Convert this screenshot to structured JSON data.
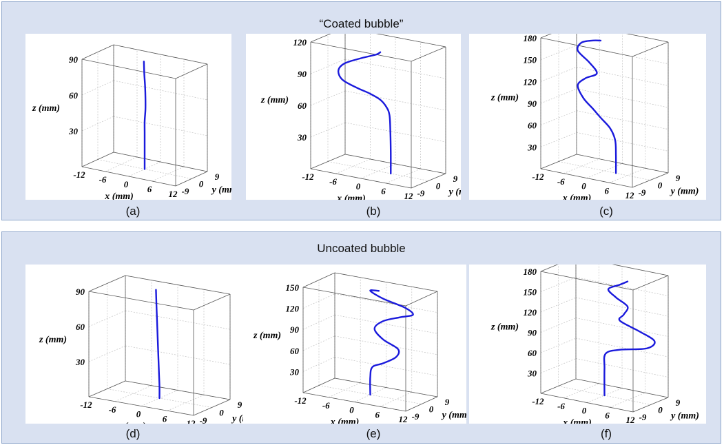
{
  "groups": [
    {
      "title": "“Coated bubble”"
    },
    {
      "title": "Uncoated bubble"
    }
  ],
  "chart_data": [
    {
      "type": "line",
      "caption": "(a)",
      "xlabel": "x (mm)",
      "ylabel": "y (mm)",
      "zlabel": "z (mm)",
      "xticks": [
        "-12",
        "-6",
        "0",
        "6",
        "12"
      ],
      "yticks": [
        "-9",
        "0",
        "9"
      ],
      "zticks": [
        "30",
        "60",
        "90"
      ],
      "xlim": [
        -12,
        12
      ],
      "ylim": [
        -9,
        9
      ],
      "zlim": [
        0,
        90
      ],
      "grid": true,
      "line_color": "#1a1adc",
      "series": [
        {
          "x": [
            0,
            0,
            0,
            0,
            0,
            0.2,
            0.2,
            0.1,
            -0.1,
            -0.2
          ],
          "y": [
            0,
            0,
            0,
            0,
            0,
            0,
            0,
            0,
            0,
            0
          ],
          "z": [
            0,
            10,
            20,
            30,
            40,
            50,
            60,
            70,
            80,
            90
          ]
        }
      ]
    },
    {
      "type": "line",
      "caption": "(b)",
      "xlabel": "x (mm)",
      "ylabel": "y (mm)",
      "zlabel": "z (mm)",
      "xticks": [
        "-12",
        "-6",
        "0",
        "6",
        "12"
      ],
      "yticks": [
        "-9",
        "0",
        "9"
      ],
      "zticks": [
        "30",
        "60",
        "90",
        "120"
      ],
      "xlim": [
        -12,
        12
      ],
      "ylim": [
        -9,
        9
      ],
      "zlim": [
        0,
        120
      ],
      "grid": true,
      "line_color": "#1a1adc",
      "series": [
        {
          "x": [
            3,
            3,
            2.9,
            2.7,
            2,
            0.5,
            -2,
            -5,
            -8.5,
            -9.5,
            -8,
            -4,
            -0.5,
            0.5
          ],
          "y": [
            0,
            0,
            0,
            0,
            0,
            0,
            0,
            0,
            0,
            0,
            0,
            0,
            0,
            0
          ],
          "z": [
            0,
            20,
            40,
            55,
            62,
            68,
            72,
            75,
            80,
            88,
            96,
            104,
            110,
            113
          ]
        }
      ]
    },
    {
      "type": "line",
      "caption": "(c)",
      "xlabel": "x (mm)",
      "ylabel": "y (mm)",
      "zlabel": "z (mm)",
      "xticks": [
        "-12",
        "-6",
        "0",
        "6",
        "12"
      ],
      "yticks": [
        "-9",
        "0",
        "9"
      ],
      "zticks": [
        "30",
        "60",
        "90",
        "120",
        "150",
        "180"
      ],
      "xlim": [
        -12,
        12
      ],
      "ylim": [
        -9,
        9
      ],
      "zlim": [
        0,
        180
      ],
      "grid": true,
      "line_color": "#1a1adc",
      "series": [
        {
          "x": [
            3,
            3,
            2.8,
            1.5,
            -1,
            -3,
            -5.5,
            -7,
            -5,
            -2,
            -4,
            -7,
            -6,
            -3,
            -1
          ],
          "y": [
            0,
            0,
            0,
            0,
            0,
            0,
            0,
            0,
            0,
            0,
            0,
            0,
            0,
            0,
            0
          ],
          "z": [
            0,
            25,
            45,
            60,
            72,
            82,
            94,
            110,
            122,
            132,
            145,
            158,
            170,
            176,
            178
          ]
        }
      ]
    },
    {
      "type": "line",
      "caption": "(d)",
      "xlabel": "x (mm)",
      "ylabel": "y (mm)",
      "zlabel": "z (mm)",
      "xticks": [
        "-12",
        "-6",
        "0",
        "6",
        "12"
      ],
      "yticks": [
        "-9",
        "0",
        "9"
      ],
      "zticks": [
        "30",
        "60",
        "90"
      ],
      "xlim": [
        -12,
        12
      ],
      "ylim": [
        -9,
        9
      ],
      "zlim": [
        0,
        90
      ],
      "grid": true,
      "line_color": "#1a1adc",
      "series": [
        {
          "x": [
            0,
            0,
            -0.1,
            -0.2,
            -0.3,
            -0.4,
            -0.5,
            -0.6,
            -0.7,
            -0.8
          ],
          "y": [
            0,
            0,
            0,
            0,
            0,
            0,
            0,
            0,
            0,
            0
          ],
          "z": [
            0,
            10,
            20,
            30,
            40,
            50,
            60,
            70,
            80,
            92
          ]
        }
      ]
    },
    {
      "type": "line",
      "caption": "(e)",
      "xlabel": "x (mm)",
      "ylabel": "y (mm)",
      "zlabel": "z (mm)",
      "xticks": [
        "-12",
        "-6",
        "0",
        "6",
        "12"
      ],
      "yticks": [
        "-9",
        "0",
        "9"
      ],
      "zticks": [
        "30",
        "60",
        "90",
        "120",
        "150"
      ],
      "xlim": [
        -12,
        12
      ],
      "ylim": [
        -9,
        9
      ],
      "zlim": [
        0,
        150
      ],
      "grid": true,
      "line_color": "#1a1adc",
      "series": [
        {
          "x": [
            0,
            0,
            0.5,
            3,
            6,
            6.5,
            3,
            1,
            3,
            7,
            10,
            8,
            3,
            0,
            2
          ],
          "y": [
            0,
            0,
            0,
            0,
            0,
            0,
            0,
            0,
            0,
            0,
            0,
            0,
            0,
            0,
            0
          ],
          "z": [
            0,
            25,
            40,
            48,
            60,
            72,
            82,
            95,
            108,
            118,
            125,
            133,
            140,
            148,
            150
          ]
        }
      ]
    },
    {
      "type": "line",
      "caption": "(f)",
      "xlabel": "x (mm)",
      "ylabel": "y (mm)",
      "zlabel": "z (mm)",
      "xticks": [
        "-12",
        "-6",
        "0",
        "6",
        "12"
      ],
      "yticks": [
        "-9",
        "0",
        "9"
      ],
      "zticks": [
        "30",
        "60",
        "90",
        "120",
        "150",
        "180"
      ],
      "xlim": [
        -12,
        12
      ],
      "ylim": [
        -9,
        9
      ],
      "zlim": [
        0,
        180
      ],
      "grid": true,
      "line_color": "#1a1adc",
      "series": [
        {
          "x": [
            0,
            0,
            0.3,
            4,
            11,
            13,
            9,
            4,
            5,
            6,
            3,
            1,
            4,
            6
          ],
          "y": [
            0,
            0,
            0,
            0,
            0,
            0,
            0,
            0,
            0,
            0,
            0,
            0,
            0,
            0
          ],
          "z": [
            0,
            40,
            62,
            72,
            82,
            95,
            105,
            115,
            125,
            138,
            148,
            158,
            168,
            175
          ]
        }
      ]
    }
  ]
}
